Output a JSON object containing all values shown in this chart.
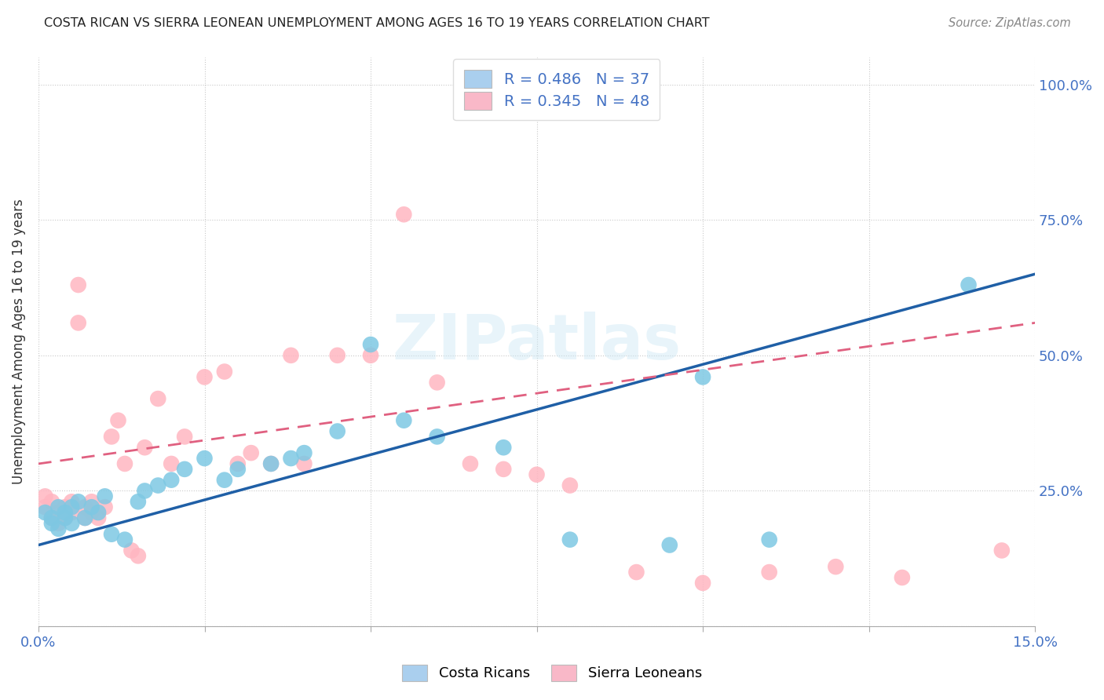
{
  "title": "COSTA RICAN VS SIERRA LEONEAN UNEMPLOYMENT AMONG AGES 16 TO 19 YEARS CORRELATION CHART",
  "source": "Source: ZipAtlas.com",
  "ylabel": "Unemployment Among Ages 16 to 19 years",
  "xlim": [
    0.0,
    0.15
  ],
  "ylim": [
    0.0,
    1.05
  ],
  "xticks": [
    0.0,
    0.025,
    0.05,
    0.075,
    0.1,
    0.125,
    0.15
  ],
  "xtick_labels": [
    "0.0%",
    "",
    "",
    "",
    "",
    "",
    "15.0%"
  ],
  "ytick_labels": [
    "",
    "25.0%",
    "50.0%",
    "75.0%",
    "100.0%"
  ],
  "yticks": [
    0.0,
    0.25,
    0.5,
    0.75,
    1.0
  ],
  "costa_rican_color": "#7ec8e3",
  "sierra_leonean_color": "#ffb6c1",
  "costa_rican_line_color": "#1f5fa6",
  "sierra_leonean_line_color": "#e06080",
  "legend_blue_fill": "#aacfee",
  "legend_pink_fill": "#f9b8c8",
  "R_costa": 0.486,
  "N_costa": 37,
  "R_sierra": 0.345,
  "N_sierra": 48,
  "watermark": "ZIPatlas",
  "tick_color": "#4472c4",
  "costa_rican_x": [
    0.001,
    0.002,
    0.002,
    0.003,
    0.003,
    0.004,
    0.004,
    0.005,
    0.005,
    0.006,
    0.007,
    0.008,
    0.009,
    0.01,
    0.011,
    0.013,
    0.015,
    0.016,
    0.018,
    0.02,
    0.022,
    0.025,
    0.028,
    0.03,
    0.035,
    0.038,
    0.04,
    0.045,
    0.05,
    0.055,
    0.06,
    0.07,
    0.08,
    0.095,
    0.1,
    0.11,
    0.14
  ],
  "costa_rican_y": [
    0.21,
    0.2,
    0.19,
    0.22,
    0.18,
    0.21,
    0.2,
    0.22,
    0.19,
    0.23,
    0.2,
    0.22,
    0.21,
    0.24,
    0.17,
    0.16,
    0.23,
    0.25,
    0.26,
    0.27,
    0.29,
    0.31,
    0.27,
    0.29,
    0.3,
    0.31,
    0.32,
    0.36,
    0.52,
    0.38,
    0.35,
    0.33,
    0.16,
    0.15,
    0.46,
    0.16,
    0.63
  ],
  "sierra_leonean_x": [
    0.001,
    0.001,
    0.002,
    0.002,
    0.003,
    0.003,
    0.004,
    0.004,
    0.005,
    0.005,
    0.006,
    0.006,
    0.007,
    0.007,
    0.008,
    0.008,
    0.009,
    0.01,
    0.011,
    0.012,
    0.013,
    0.014,
    0.015,
    0.016,
    0.018,
    0.02,
    0.022,
    0.025,
    0.028,
    0.03,
    0.032,
    0.035,
    0.038,
    0.04,
    0.045,
    0.05,
    0.055,
    0.06,
    0.065,
    0.07,
    0.075,
    0.08,
    0.09,
    0.1,
    0.11,
    0.12,
    0.13,
    0.145
  ],
  "sierra_leonean_y": [
    0.22,
    0.24,
    0.2,
    0.23,
    0.21,
    0.19,
    0.22,
    0.2,
    0.21,
    0.23,
    0.56,
    0.63,
    0.22,
    0.2,
    0.23,
    0.21,
    0.2,
    0.22,
    0.35,
    0.38,
    0.3,
    0.14,
    0.13,
    0.33,
    0.42,
    0.3,
    0.35,
    0.46,
    0.47,
    0.3,
    0.32,
    0.3,
    0.5,
    0.3,
    0.5,
    0.5,
    0.76,
    0.45,
    0.3,
    0.29,
    0.28,
    0.26,
    0.1,
    0.08,
    0.1,
    0.11,
    0.09,
    0.14
  ]
}
